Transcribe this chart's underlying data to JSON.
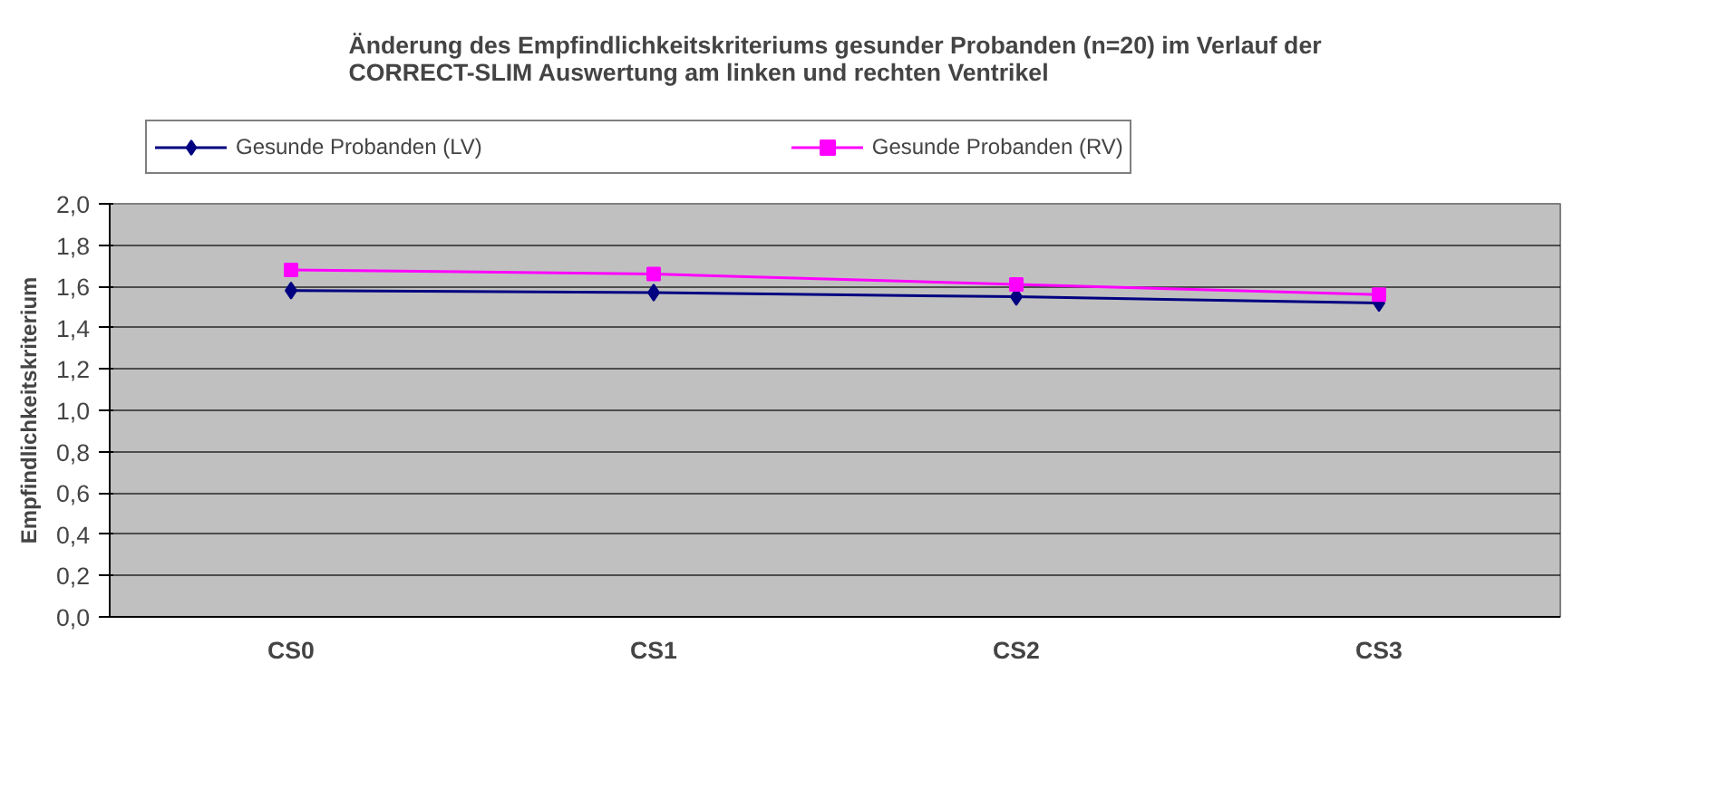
{
  "chart_data": {
    "type": "line",
    "title": "Änderung des Empfindlichkeitskriteriums gesunder Probanden (n=20) im Verlauf der\nCORRECT-SLIM Auswertung am linken und rechten Ventrikel",
    "ylabel": "Empfindlichkeitskriterium",
    "categories": [
      "CS0",
      "CS1",
      "CS2",
      "CS3"
    ],
    "series": [
      {
        "name": "Gesunde Probanden (LV)",
        "color": "#000080",
        "marker": "diamond",
        "values": [
          1.58,
          1.57,
          1.55,
          1.52
        ]
      },
      {
        "name": "Gesunde Probanden (RV)",
        "color": "#ff00ff",
        "marker": "square",
        "values": [
          1.68,
          1.66,
          1.61,
          1.56
        ]
      }
    ],
    "ylim": [
      0,
      2
    ],
    "yticks": [
      {
        "value": 0,
        "label": "0,0"
      },
      {
        "value": 0.2,
        "label": "0,2"
      },
      {
        "value": 0.4,
        "label": "0,4"
      },
      {
        "value": 0.6,
        "label": "0,6"
      },
      {
        "value": 0.8,
        "label": "0,8"
      },
      {
        "value": 1,
        "label": "1,0"
      },
      {
        "value": 1.2,
        "label": "1,2"
      },
      {
        "value": 1.4,
        "label": "1,4"
      },
      {
        "value": 1.6,
        "label": "1,6"
      },
      {
        "value": 1.8,
        "label": "1,8"
      },
      {
        "value": 2,
        "label": "2,0"
      }
    ],
    "grid": "y",
    "legend": "top",
    "line_style": "solid"
  }
}
